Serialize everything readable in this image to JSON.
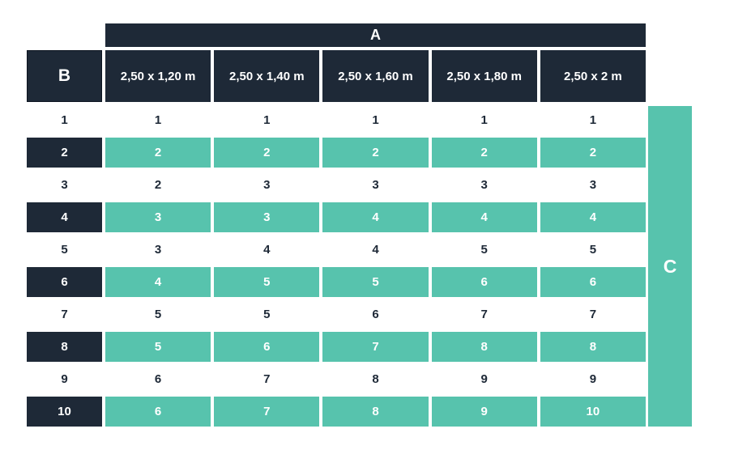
{
  "colors": {
    "navy": "#1e2937",
    "teal": "#57c3ad",
    "text_on_dark": "#ffffff",
    "text_on_light": "#1e2937"
  },
  "chart_data": {
    "type": "table",
    "span_header": "A",
    "corner_label": "B",
    "side_label": "C",
    "columns": [
      "2,50 x 1,20 m",
      "2,50 x 1,40 m",
      "2,50 x 1,60 m",
      "2,50 x 1,80 m",
      "2,50 x 2 m"
    ],
    "rows": [
      {
        "b": "1",
        "values": [
          "1",
          "1",
          "1",
          "1",
          "1"
        ],
        "highlighted": false
      },
      {
        "b": "2",
        "values": [
          "2",
          "2",
          "2",
          "2",
          "2"
        ],
        "highlighted": true
      },
      {
        "b": "3",
        "values": [
          "2",
          "3",
          "3",
          "3",
          "3"
        ],
        "highlighted": false
      },
      {
        "b": "4",
        "values": [
          "3",
          "3",
          "4",
          "4",
          "4"
        ],
        "highlighted": true
      },
      {
        "b": "5",
        "values": [
          "3",
          "4",
          "4",
          "5",
          "5"
        ],
        "highlighted": false
      },
      {
        "b": "6",
        "values": [
          "4",
          "5",
          "5",
          "6",
          "6"
        ],
        "highlighted": true
      },
      {
        "b": "7",
        "values": [
          "5",
          "5",
          "6",
          "7",
          "7"
        ],
        "highlighted": false
      },
      {
        "b": "8",
        "values": [
          "5",
          "6",
          "7",
          "8",
          "8"
        ],
        "highlighted": true
      },
      {
        "b": "9",
        "values": [
          "6",
          "7",
          "8",
          "9",
          "9"
        ],
        "highlighted": false
      },
      {
        "b": "10",
        "values": [
          "6",
          "7",
          "8",
          "9",
          "10"
        ],
        "highlighted": true
      }
    ]
  }
}
